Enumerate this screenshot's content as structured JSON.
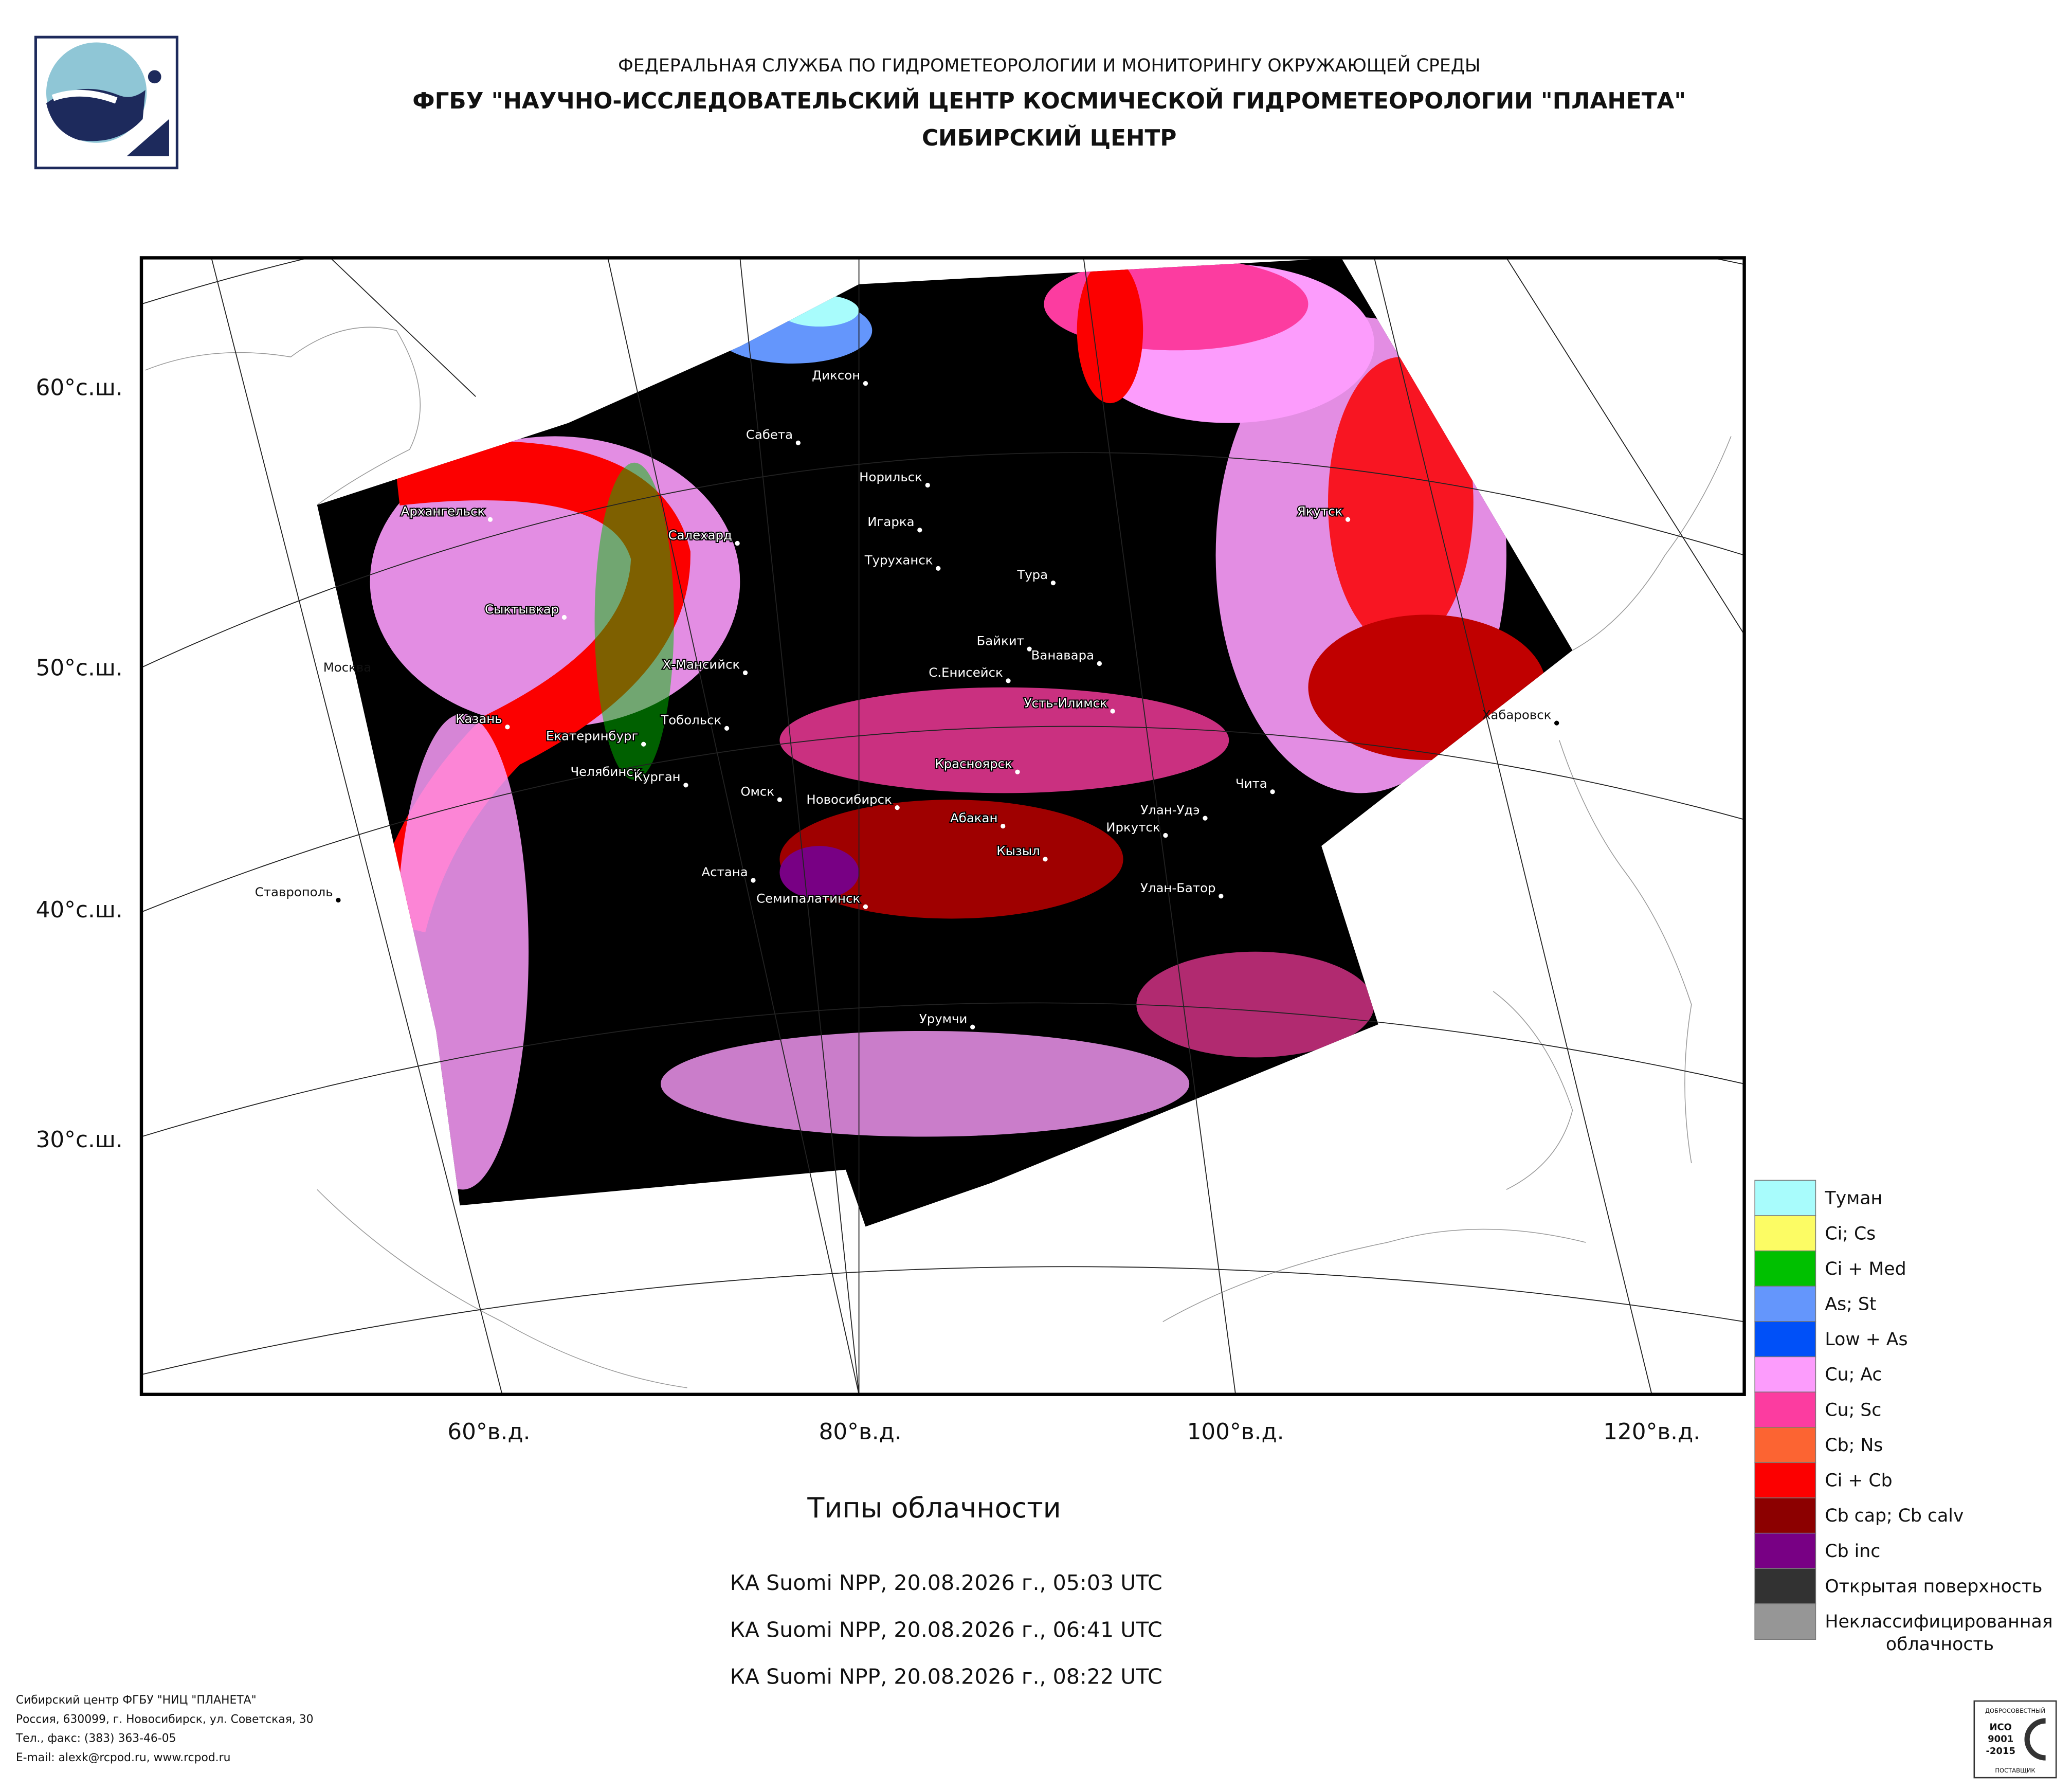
{
  "header": {
    "agency": "ФЕДЕРАЛЬНАЯ СЛУЖБА ПО ГИДРОМЕТЕОРОЛОГИИ И МОНИТОРИНГУ ОКРУЖАЮЩЕЙ СРЕДЫ",
    "center": "ФГБУ \"НАУЧНО-ИССЛЕДОВАТЕЛЬСКИЙ ЦЕНТР КОСМИЧЕСКОЙ ГИДРОМЕТЕОРОЛОГИИ \"ПЛАНЕТА\"",
    "branch": "СИБИРСКИЙ ЦЕНТР"
  },
  "map": {
    "lat_labels": [
      "60°с.ш.",
      "50°с.ш.",
      "40°с.ш.",
      "30°с.ш."
    ],
    "lon_labels": [
      "60°в.д.",
      "80°в.д.",
      "100°в.д.",
      "120°в.д."
    ],
    "cities": [
      "Диксон",
      "Сабета",
      "Норильск",
      "Игарка",
      "Туруханск",
      "Тура",
      "Архангельск",
      "Салехард",
      "Сыктывкар",
      "Москва",
      "Х-Мансийск",
      "Байкит",
      "Ванавара",
      "С.Енисейск",
      "Усть-Илимск",
      "Казань",
      "Екатеринбург",
      "Тобольск",
      "Челябинск",
      "Курган",
      "Омск",
      "Новосибирск",
      "Красноярск",
      "Абакан",
      "Иркутск",
      "Улан-Удэ",
      "Чита",
      "Хабаровск",
      "Якутск",
      "Ставрополь",
      "Астана",
      "Семипалатинск",
      "Кызыл",
      "Улан-Батор",
      "Урумчи"
    ]
  },
  "legend": [
    {
      "lines": [
        "Туман"
      ],
      "color": "#a8fcfc"
    },
    {
      "lines": [
        "Ci; Cs"
      ],
      "color": "#fcfc64"
    },
    {
      "lines": [
        "Ci + Med"
      ],
      "color": "#00c000"
    },
    {
      "lines": [
        "As; St"
      ],
      "color": "#6496fc"
    },
    {
      "lines": [
        "Low + As"
      ],
      "color": "#0050f8"
    },
    {
      "lines": [
        "Cu; Ac"
      ],
      "color": "#fc9cfc"
    },
    {
      "lines": [
        "Cu; Sc"
      ],
      "color": "#fc3ca0"
    },
    {
      "lines": [
        "Cb; Ns"
      ],
      "color": "#fc6432"
    },
    {
      "lines": [
        "Ci + Cb"
      ],
      "color": "#fc0000"
    },
    {
      "lines": [
        "Cb cap; Cb calv"
      ],
      "color": "#8c0000"
    },
    {
      "lines": [
        "Cb inc"
      ],
      "color": "#780084"
    },
    {
      "lines": [
        "Открытая поверхность"
      ],
      "color": "#323232"
    },
    {
      "lines": [
        "Неклассифицированная",
        "облачность"
      ],
      "color": "#969696"
    }
  ],
  "product": {
    "title": "Типы облачности",
    "passes": [
      "КА Suomi NPP, 20.08.2026 г., 05:03 UTC",
      "КА Suomi NPP, 20.08.2026 г., 06:41 UTC",
      "КА Suomi NPP, 20.08.2026 г., 08:22 UTC"
    ]
  },
  "footer": [
    "Сибирский центр ФГБУ \"НИЦ \"ПЛАНЕТА\"",
    "Россия, 630099, г. Новосибирск, ул. Советская, 30",
    "Тел., факс: (383) 363-46-05",
    "E-mail: alexk@rcpod.ru, www.rcpod.ru"
  ],
  "badge": {
    "top": "ДОБРОСОВЕСТНЫЙ",
    "iso": "ИСО",
    "number": "9001",
    "year": "-2015",
    "bottom": "ПОСТАВЩИК"
  }
}
